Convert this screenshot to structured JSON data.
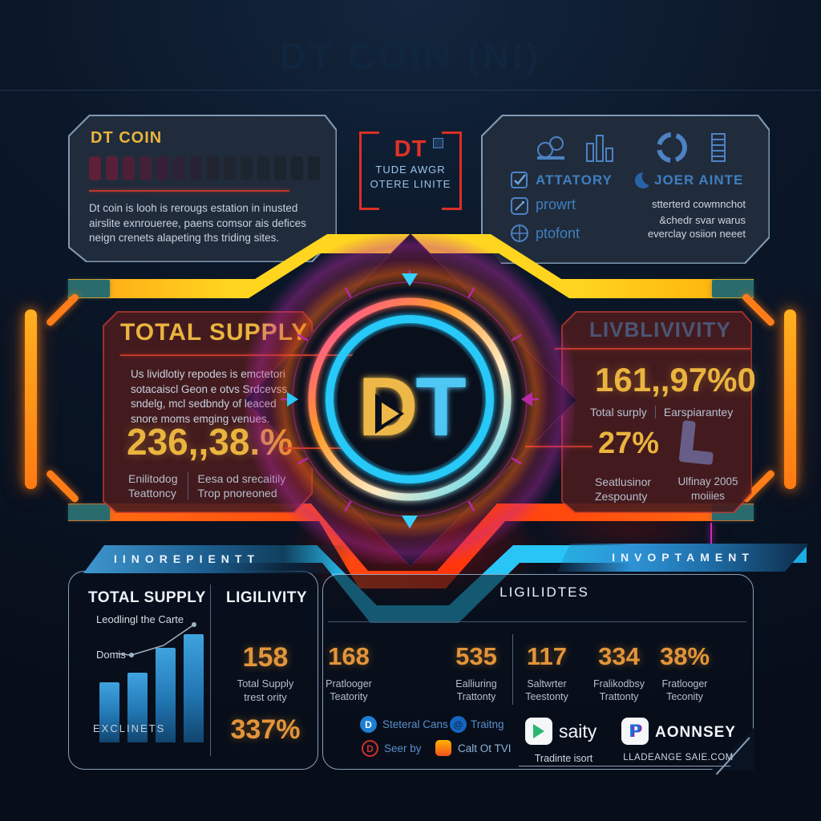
{
  "title": "DT COIN (NI)",
  "colors": {
    "gold": "#eab43e",
    "stat_orange": "#e2953a",
    "neon_yellow": "#ffd51f",
    "neon_orange": "#ff7a12",
    "neon_red": "#ff3c0e",
    "neon_cyan": "#29c5f6",
    "magenta": "#c12fae",
    "accent_blue": "#4d82c4",
    "panel_border": "#a8c4e0"
  },
  "intro_panel": {
    "title": "DT COIN",
    "meter_segments": 14,
    "description": "Dt coin is looh is rerougs estation in inusted airslite exnroueree, paens comsor ais defices neign crenets alapeting ths triding sites."
  },
  "badge": {
    "logo": "DT",
    "line1": "TUDE AWGR",
    "line2": "OTERE LINITE"
  },
  "features_panel": {
    "item1": "ATTATORY",
    "item2": "JOER AINTE",
    "item3": "prowrt",
    "item3_note": "stterterd cowmnchot",
    "item4": "ptofont",
    "item4_note1": "&chedr svar warus",
    "item4_note2": "everclay osiion neeet"
  },
  "supply_panel": {
    "title": "TOTAL SUPPLY",
    "description": "Us lividlotiy repodes is emctetori sotacaiscl Geon e otvs Srdcevss sndelg, mcl sedbndy of leaced snore moms emging venues.",
    "value": "236,,38.%",
    "left_label_line1": "Enilitodog",
    "left_label_line2": "Teattoncy",
    "right_label_line1": "Eesa od srecaitily",
    "right_label_line2": "Trop pnoreoned"
  },
  "emblem": {
    "letter_d": "D",
    "letter_t": "T"
  },
  "liquidity_panel": {
    "title": "LIVBLIVIVITY",
    "value": "161,,97%0",
    "sub_left": "Total surply",
    "sub_right": "Earspiarantey",
    "value2": "27%",
    "value2_label_line1": "Seatlusinor",
    "value2_label_line2": "Zespounty",
    "aside_line1": "Ulfinay 2005",
    "aside_line2": "moiiies"
  },
  "strip_left": "IINOREPIENTT",
  "strip_right": "INVOPTAMENT",
  "overview_panel": {
    "header_left": "TOTAL SUPPLY",
    "header_right": "LIGILIVITY",
    "annotation_top": "Leodlingl the Carte",
    "annotation_mid": "Domis",
    "footer": "EXCLINETS",
    "stat1_value": "158",
    "stat1_label_line1": "Total Supply",
    "stat1_label_line2": "trest ority",
    "stat2_value": "337%",
    "chart": {
      "type": "bar",
      "values": [
        75,
        87,
        118,
        135
      ],
      "bar_color": "#2e8fd0",
      "trend": "rising"
    }
  },
  "stats_row": [
    {
      "value": "168",
      "label_line1": "Pratlooger",
      "label_line2": "Teatority"
    },
    {
      "value": "535",
      "label_line1": "Ealliuring",
      "label_line2": "Trattonty"
    },
    {
      "value": "117",
      "label_line1": "Saltwrter",
      "label_line2": "Teestonty"
    },
    {
      "value": "334",
      "label_line1": "Fralikodbsy",
      "label_line2": "Trattonty"
    },
    {
      "value": "38%",
      "label_line1": "Fratlooger",
      "label_line2": "Teconity"
    }
  ],
  "liquidities_panel": {
    "title": "LIGILIDTES",
    "icon1_label": "Steteral Cans",
    "icon2_label": "Traitng",
    "icon3_label": "Seer by",
    "icon4_label": "Calt Ot TVI",
    "app1_name": "saity",
    "app1_caption": "Tradinte isort",
    "app2_name": "AONNSEY",
    "app2_caption": "LLADEANGE SAIE.COM"
  }
}
